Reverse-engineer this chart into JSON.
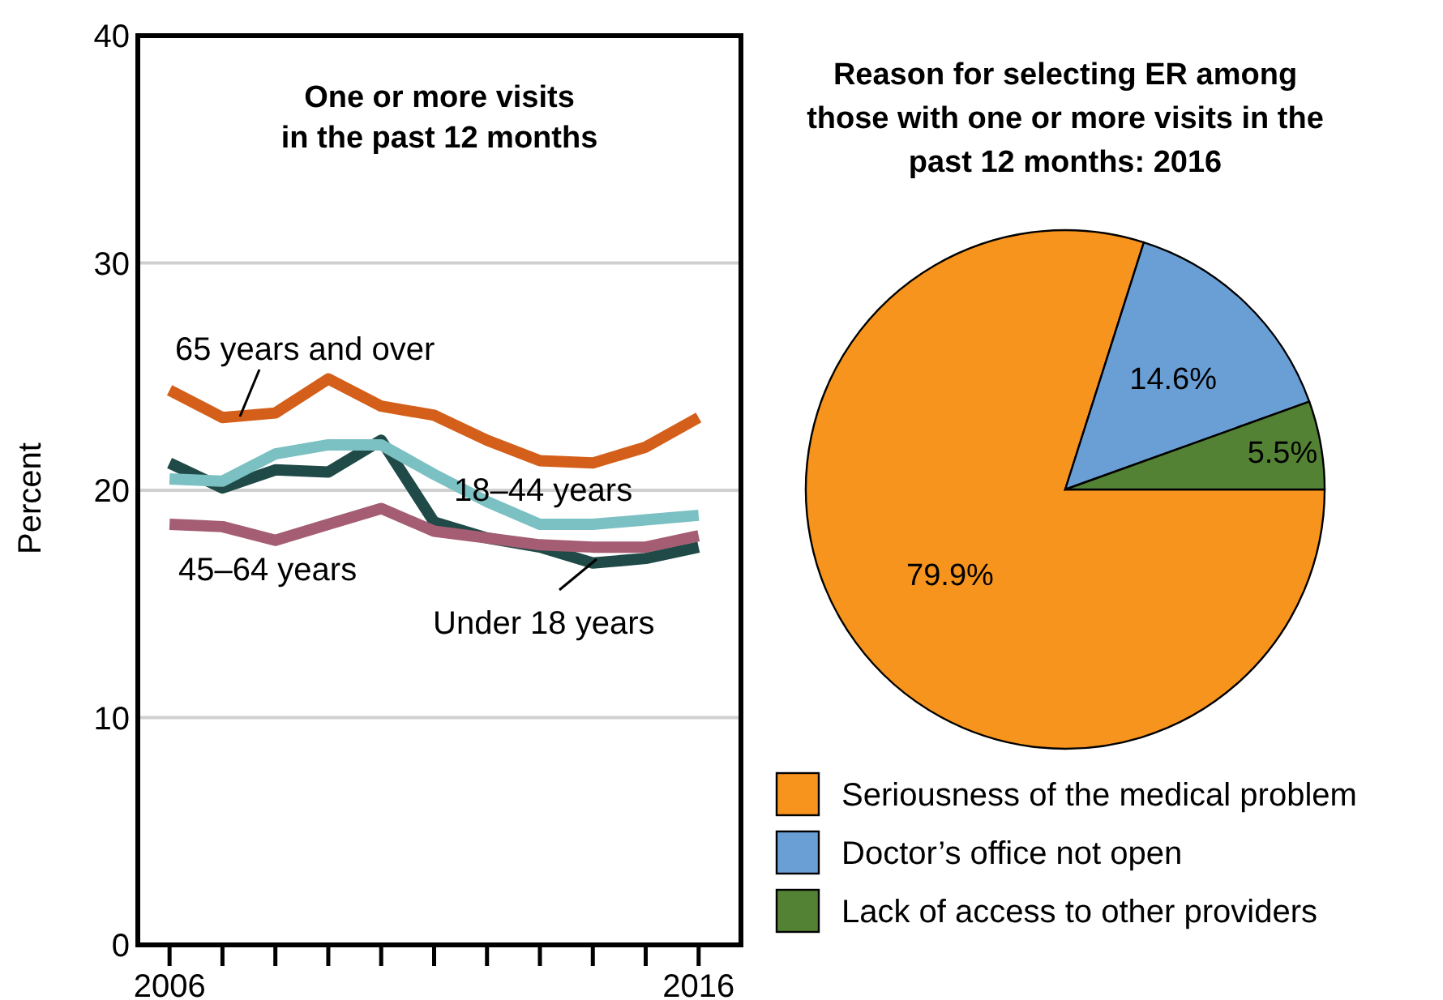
{
  "chart_data": [
    {
      "type": "line",
      "title": "One or more visits\nin the past 12 months",
      "ylabel": "Percent",
      "x": [
        2006,
        2007,
        2008,
        2009,
        2010,
        2011,
        2012,
        2013,
        2014,
        2015,
        2016
      ],
      "series": [
        {
          "name": "65 years and over",
          "color": "#d45f1a",
          "values": [
            24.4,
            23.2,
            23.4,
            24.9,
            23.7,
            23.3,
            22.2,
            21.3,
            21.2,
            21.9,
            23.2
          ]
        },
        {
          "name": "Under 18 years",
          "color": "#1f4a47",
          "values": [
            21.2,
            20.1,
            20.9,
            20.8,
            22.2,
            18.6,
            17.9,
            17.5,
            16.8,
            17.0,
            17.5
          ]
        },
        {
          "name": "18–44 years",
          "color": "#7bc0c2",
          "values": [
            20.5,
            20.4,
            21.6,
            22.0,
            22.0,
            20.7,
            19.5,
            18.5,
            18.5,
            18.7,
            18.9
          ]
        },
        {
          "name": "45–64 years",
          "color": "#a45d72",
          "values": [
            18.5,
            18.4,
            17.8,
            18.5,
            19.2,
            18.2,
            17.9,
            17.6,
            17.5,
            17.5,
            18.0
          ]
        }
      ],
      "xlim": [
        2005.4,
        2016.8
      ],
      "xticks": [
        2006,
        {
          "value": 2007,
          "label": null
        },
        {
          "value": 2008,
          "label": null
        },
        {
          "value": 2009,
          "label": null
        },
        {
          "value": 2010,
          "label": null
        },
        {
          "value": 2011,
          "label": null
        },
        {
          "value": 2012,
          "label": null
        },
        {
          "value": 2013,
          "label": null
        },
        {
          "value": 2014,
          "label": null
        },
        {
          "value": 2015,
          "label": null
        },
        2016
      ],
      "ylim": [
        0,
        40
      ],
      "yticks": [
        0,
        10,
        20,
        30,
        40
      ],
      "grid": "y",
      "legend": false
    },
    {
      "type": "pie",
      "title": "Reason for selecting ER among\nthose with one or more visits in the\npast 12 months: 2016",
      "categories": [
        "Seriousness of the medical problem",
        "Doctor’s office not open",
        "Lack of access to other providers"
      ],
      "values": [
        79.9,
        14.6,
        5.5
      ],
      "colors": [
        "#f7941d",
        "#6a9fd6",
        "#548235"
      ],
      "value_labels": [
        "79.9%",
        "14.6%",
        "5.5%"
      ],
      "legend": "bottom"
    }
  ]
}
